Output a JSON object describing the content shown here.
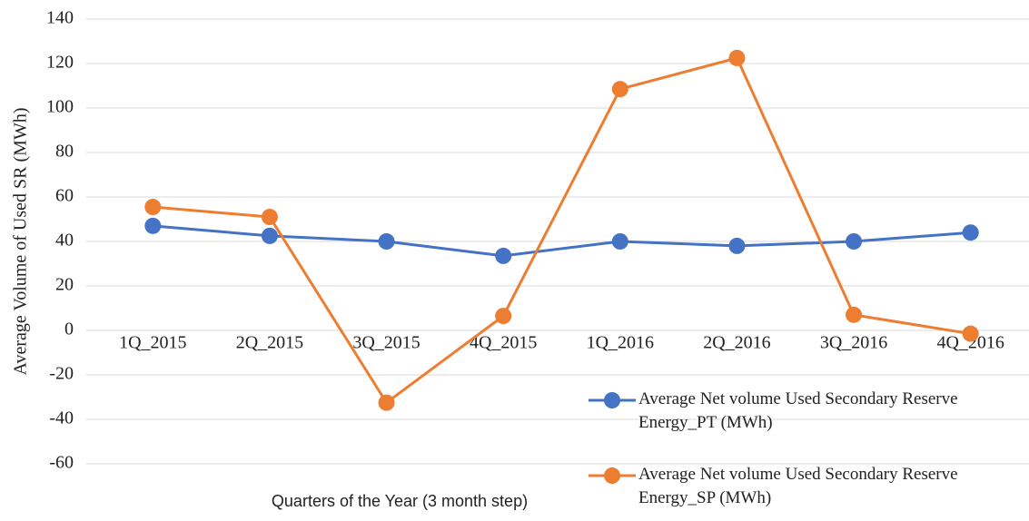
{
  "chart_data": {
    "type": "line",
    "x_label": "Quarters of the Year (3 month step)",
    "y_label": "Average Volume of Used SR (MWh)",
    "categories": [
      "1Q_2015",
      "2Q_2015",
      "3Q_2015",
      "4Q_2015",
      "1Q_2016",
      "2Q_2016",
      "3Q_2016",
      "4Q_2016"
    ],
    "series": [
      {
        "name": "Average Net volume Used Secondary Reserve Energy_PT (MWh)",
        "color": "#4472c4",
        "values": [
          47,
          42.5,
          40,
          33.5,
          40,
          38,
          40,
          44
        ]
      },
      {
        "name": "Average Net volume Used Secondary Reserve Energy_SP (MWh)",
        "color": "#ed7d31",
        "values": [
          55.5,
          51,
          -32.5,
          6.5,
          108.5,
          122.5,
          7,
          -1.5
        ]
      }
    ],
    "ylim": [
      -60,
      140
    ],
    "yticks": [
      -60,
      -40,
      -20,
      0,
      20,
      40,
      60,
      80,
      100,
      120,
      140
    ],
    "grid": true
  }
}
